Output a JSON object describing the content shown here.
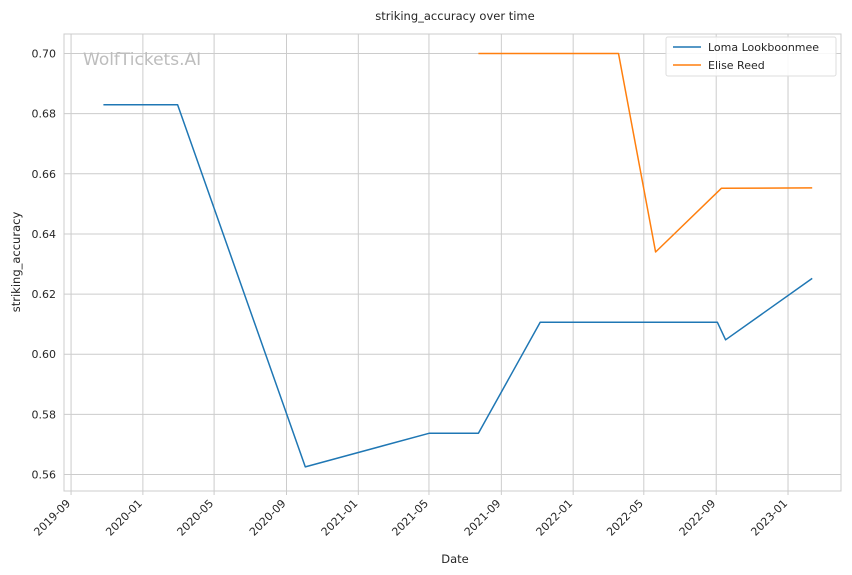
{
  "chart_data": {
    "type": "line",
    "title": "striking_accuracy over time",
    "xlabel": "Date",
    "ylabel": "striking_accuracy",
    "watermark": "WolfTickets.AI",
    "xlim": [
      "2019-08-20",
      "2023-04-01"
    ],
    "ylim": [
      0.5545,
      0.7065
    ],
    "x_ticks": [
      "2019-09",
      "2020-01",
      "2020-05",
      "2020-09",
      "2021-01",
      "2021-05",
      "2021-09",
      "2022-01",
      "2022-05",
      "2022-09",
      "2023-01"
    ],
    "y_ticks": [
      "0.56",
      "0.58",
      "0.60",
      "0.62",
      "0.64",
      "0.66",
      "0.68",
      "0.70"
    ],
    "grid": true,
    "legend_position": "top-right",
    "series": [
      {
        "name": "Loma Lookboonmee",
        "color": "#1f77b4",
        "points": [
          {
            "x": "2019-10-26",
            "y": 0.683
          },
          {
            "x": "2020-02-29",
            "y": 0.683
          },
          {
            "x": "2020-10-03",
            "y": 0.5625
          },
          {
            "x": "2021-05-01",
            "y": 0.5737
          },
          {
            "x": "2021-07-24",
            "y": 0.5737
          },
          {
            "x": "2021-11-06",
            "y": 0.6106
          },
          {
            "x": "2022-09-03",
            "y": 0.6106
          },
          {
            "x": "2022-09-17",
            "y": 0.6048
          },
          {
            "x": "2023-02-11",
            "y": 0.6252
          }
        ]
      },
      {
        "name": "Elise Reed",
        "color": "#ff7f0e",
        "points": [
          {
            "x": "2021-07-24",
            "y": 0.7
          },
          {
            "x": "2022-03-19",
            "y": 0.7
          },
          {
            "x": "2022-05-21",
            "y": 0.634
          },
          {
            "x": "2022-09-10",
            "y": 0.6552
          },
          {
            "x": "2023-02-11",
            "y": 0.6553
          }
        ]
      }
    ]
  }
}
